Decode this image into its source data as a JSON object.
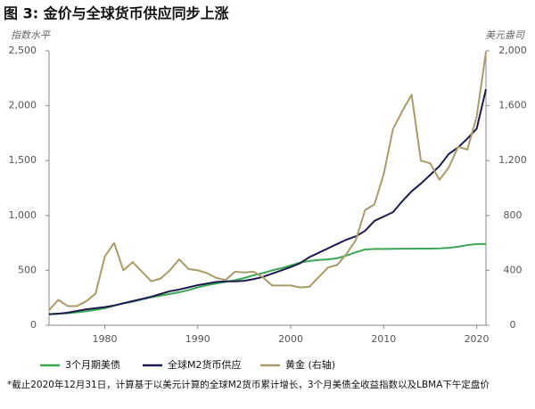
{
  "chart_data": {
    "type": "line",
    "title": "图 3: 金价与全球货币供应同步上涨",
    "y_label": "指数水平",
    "y2_label": "美元盎司",
    "footnote": "*截止2020年12月31日，计算基于以美元计算的全球M2货币累计增长，3个月美债全收益指数以及LBMA下午定盘价",
    "x": [
      1974,
      1975,
      1976,
      1977,
      1978,
      1979,
      1980,
      1981,
      1982,
      1983,
      1984,
      1985,
      1986,
      1987,
      1988,
      1989,
      1990,
      1991,
      1992,
      1993,
      1994,
      1995,
      1996,
      1997,
      1998,
      1999,
      2000,
      2001,
      2002,
      2003,
      2004,
      2005,
      2006,
      2007,
      2008,
      2009,
      2010,
      2011,
      2012,
      2013,
      2014,
      2015,
      2016,
      2017,
      2018,
      2019,
      2020,
      2021
    ],
    "series": [
      {
        "name": "3个月期美债",
        "color": "#3aa655",
        "values": [
          100,
          105,
          110,
          118,
          128,
          140,
          155,
          178,
          200,
          215,
          235,
          255,
          270,
          285,
          300,
          320,
          345,
          365,
          380,
          395,
          410,
          430,
          455,
          475,
          500,
          520,
          545,
          570,
          585,
          595,
          600,
          610,
          635,
          665,
          690,
          695,
          695,
          696,
          697,
          697,
          698,
          698,
          700,
          705,
          715,
          730,
          740,
          740
        ]
      },
      {
        "name": "全球M2货币供应",
        "color": "#1c1c4c",
        "values": [
          100,
          105,
          115,
          130,
          145,
          155,
          165,
          180,
          200,
          220,
          240,
          260,
          285,
          310,
          325,
          345,
          365,
          380,
          395,
          400,
          400,
          405,
          420,
          440,
          470,
          500,
          530,
          565,
          620,
          660,
          700,
          740,
          780,
          810,
          860,
          950,
          990,
          1030,
          1130,
          1220,
          1290,
          1370,
          1450,
          1560,
          1620,
          1700,
          1790,
          2150
        ]
      },
      {
        "name": "黄金 (右轴)",
        "color": "#a89b6a",
        "axis": "y2",
        "values": [
          110,
          185,
          140,
          140,
          175,
          230,
          500,
          600,
          400,
          460,
          390,
          320,
          340,
          400,
          480,
          410,
          400,
          380,
          345,
          330,
          390,
          385,
          390,
          350,
          290,
          290,
          290,
          275,
          280,
          350,
          420,
          440,
          520,
          620,
          840,
          880,
          1100,
          1430,
          1560,
          1680,
          1200,
          1180,
          1060,
          1150,
          1300,
          1280,
          1520,
          1990
        ]
      }
    ],
    "xlim": [
      1974,
      2021
    ],
    "xticks": [
      1980,
      1990,
      2000,
      2010,
      2020
    ],
    "ylim": [
      0,
      2500
    ],
    "yticks": [
      0,
      500,
      {
        "value": 1000,
        "label": "1,000"
      },
      {
        "value": 1500,
        "label": "1,500"
      },
      {
        "value": 2000,
        "label": "2,000"
      },
      {
        "value": 2500,
        "label": "2,500"
      }
    ],
    "y2lim": [
      0,
      2000
    ],
    "y2ticks": [
      0,
      400,
      800,
      {
        "value": 1200,
        "label": "1,200"
      },
      {
        "value": 1600,
        "label": "1,600"
      },
      {
        "value": 2000,
        "label": "2,000"
      }
    ],
    "grid": false
  }
}
